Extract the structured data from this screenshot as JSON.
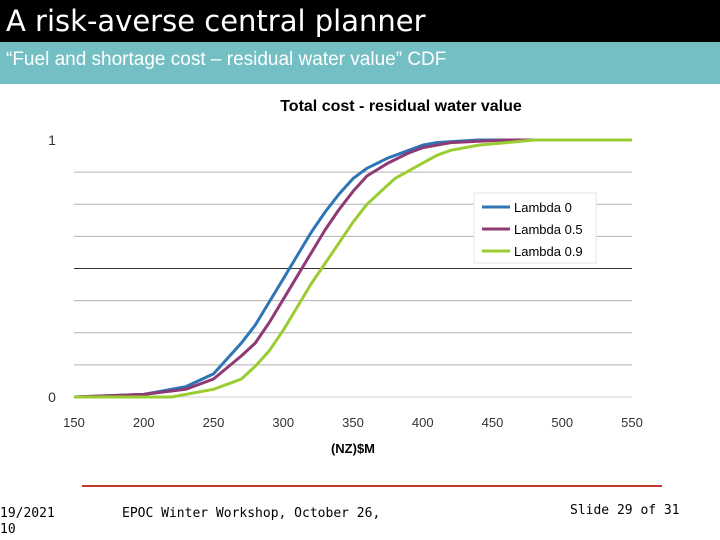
{
  "slide": {
    "title": "A risk-averse central planner",
    "subtitle": "“Fuel and shortage cost – residual water value” CDF"
  },
  "footer": {
    "date_line1": "19/2021",
    "date_line2": "10",
    "event": "EPOC Winter Workshop, October 26,",
    "slide_number": "Slide 29 of 31"
  },
  "colors": {
    "title_bar": "#000000",
    "subtitle_bar": "#73bfc4",
    "footer_line": "#c0392b"
  },
  "chart_data": {
    "type": "line",
    "title": "Total cost - residual water value",
    "xlabel": "(NZ)$M",
    "ylabel": "",
    "xlim": [
      150,
      550
    ],
    "ylim": [
      0,
      1
    ],
    "xticks": [
      150,
      200,
      250,
      300,
      350,
      400,
      450,
      500,
      550
    ],
    "yticks": [
      0,
      1
    ],
    "grid": "horizontal",
    "legend_position": "right",
    "series": [
      {
        "name": "Lambda 0",
        "color": "#2e75b6",
        "x": [
          150,
          200,
          230,
          250,
          270,
          280,
          290,
          300,
          310,
          320,
          330,
          340,
          350,
          360,
          375,
          390,
          400,
          410,
          425,
          440,
          460,
          480,
          550
        ],
        "y": [
          0,
          0.01,
          0.04,
          0.09,
          0.21,
          0.28,
          0.37,
          0.46,
          0.55,
          0.64,
          0.72,
          0.79,
          0.85,
          0.89,
          0.93,
          0.96,
          0.98,
          0.99,
          0.995,
          1.0,
          1.0,
          1.0,
          1.0
        ]
      },
      {
        "name": "Lambda 0.5",
        "color": "#8e3a75",
        "x": [
          150,
          200,
          230,
          250,
          270,
          280,
          290,
          300,
          310,
          320,
          330,
          340,
          350,
          360,
          375,
          390,
          400,
          420,
          440,
          460,
          480,
          550
        ],
        "y": [
          0,
          0.01,
          0.03,
          0.07,
          0.16,
          0.21,
          0.29,
          0.38,
          0.47,
          0.56,
          0.65,
          0.73,
          0.8,
          0.86,
          0.91,
          0.95,
          0.97,
          0.99,
          0.995,
          1.0,
          1.0,
          1.0
        ]
      },
      {
        "name": "Lambda 0.9",
        "color": "#9acd32",
        "x": [
          150,
          220,
          250,
          270,
          280,
          290,
          300,
          310,
          320,
          330,
          340,
          350,
          360,
          370,
          380,
          390,
          400,
          410,
          420,
          440,
          460,
          480,
          550
        ],
        "y": [
          0,
          0,
          0.03,
          0.07,
          0.12,
          0.18,
          0.26,
          0.35,
          0.44,
          0.52,
          0.6,
          0.68,
          0.75,
          0.8,
          0.85,
          0.88,
          0.91,
          0.94,
          0.96,
          0.98,
          0.99,
          1.0,
          1.0
        ]
      }
    ]
  }
}
